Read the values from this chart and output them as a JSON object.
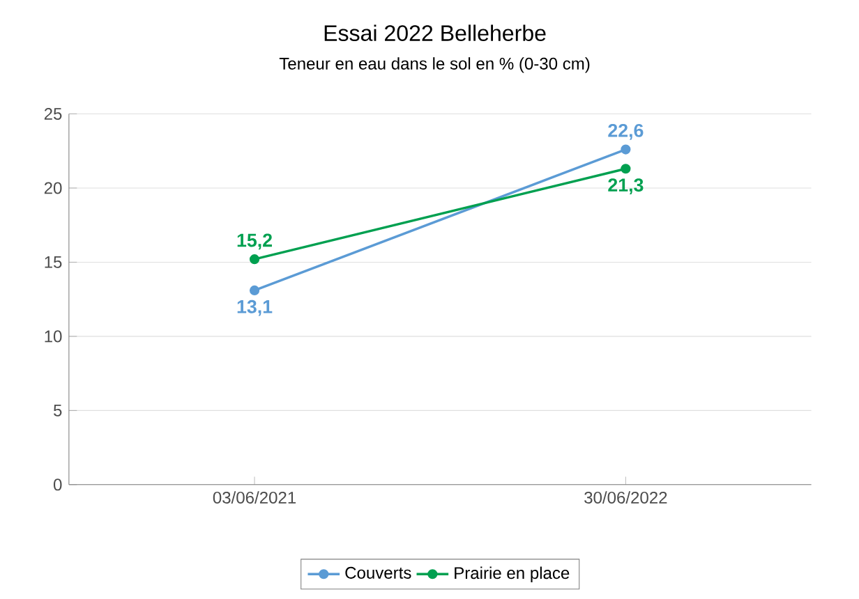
{
  "chart_data": {
    "type": "line",
    "title": "Essai 2022 Belleherbe",
    "subtitle": "Teneur en eau dans le sol en % (0-30 cm)",
    "categories": [
      "03/06/2021",
      "30/06/2022"
    ],
    "series": [
      {
        "name": "Couverts",
        "color": "#5b9bd5",
        "values": [
          13.1,
          22.6
        ],
        "value_labels": [
          "13,1",
          "22,6"
        ]
      },
      {
        "name": "Prairie en place",
        "color": "#00a050",
        "values": [
          15.2,
          21.3
        ],
        "value_labels": [
          "15,2",
          "21,3"
        ]
      }
    ],
    "ylim": [
      0,
      25
    ],
    "yticks": [
      0,
      5,
      10,
      15,
      20,
      25
    ],
    "grid": "y",
    "legend": "bottom",
    "marker": "circle",
    "line_style": "solid"
  }
}
